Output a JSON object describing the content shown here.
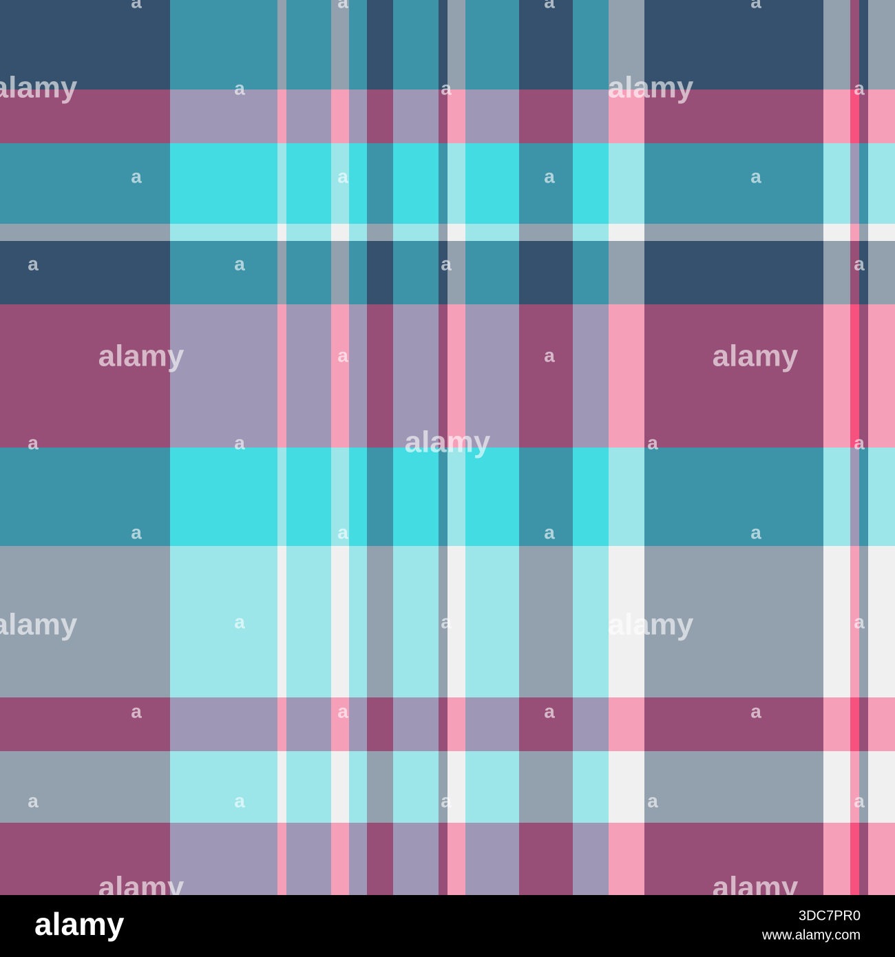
{
  "watermarks": {
    "large": [
      "alamy",
      "alamy",
      "alamy",
      "alamy",
      "alamy",
      "alamy",
      "alamy",
      "alamy",
      "alamy"
    ],
    "small": [
      "a",
      "a",
      "a",
      "a",
      "a",
      "a",
      "a",
      "a",
      "a",
      "a",
      "a",
      "a",
      "a",
      "a",
      "a",
      "a",
      "a",
      "a",
      "a",
      "a",
      "a",
      "a",
      "a",
      "a",
      "a",
      "a",
      "a",
      "a",
      "a",
      "a",
      "a",
      "a",
      "a",
      "a",
      "a",
      "a",
      "a"
    ]
  },
  "footer": {
    "logo": "alamy",
    "image_id": "3DC7PR0",
    "url": "www.alamy.com"
  }
}
